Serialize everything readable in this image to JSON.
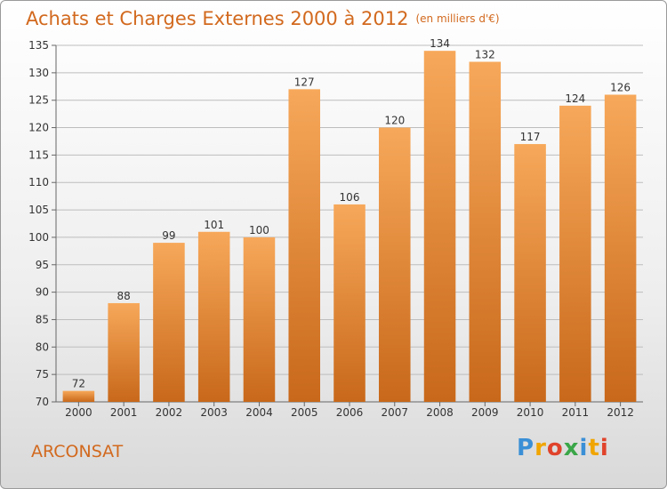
{
  "header": {
    "title": "Achats et Charges Externes 2000 à 2012",
    "subtitle": "(en milliers d'€)"
  },
  "footer": {
    "commune": "ARCONSAT",
    "logo_text": "Proxiti",
    "logo_letters": [
      {
        "char": "P",
        "color": "#3a8fd6"
      },
      {
        "char": "r",
        "color": "#f0a500"
      },
      {
        "char": "o",
        "color": "#e0432b"
      },
      {
        "char": "x",
        "color": "#3aa648"
      },
      {
        "char": "i",
        "color": "#3a8fd6"
      },
      {
        "char": "t",
        "color": "#f0a500"
      },
      {
        "char": "i",
        "color": "#e0432b"
      }
    ]
  },
  "colors": {
    "title": "#d2691e",
    "bar_top": "#f7a85a",
    "bar_bottom": "#c8681a",
    "grid": "#bdbdbd"
  },
  "chart_data": {
    "type": "bar",
    "title": "Achats et Charges Externes 2000 à 2012",
    "subtitle": "(en milliers d'€)",
    "categories": [
      "2000",
      "2001",
      "2002",
      "2003",
      "2004",
      "2005",
      "2006",
      "2007",
      "2008",
      "2009",
      "2010",
      "2011",
      "2012"
    ],
    "values": [
      72,
      88,
      99,
      101,
      100,
      127,
      106,
      120,
      134,
      132,
      117,
      124,
      126
    ],
    "ylim": [
      70,
      135
    ],
    "yticks": [
      70,
      75,
      80,
      85,
      90,
      95,
      100,
      105,
      110,
      115,
      120,
      125,
      130,
      135
    ],
    "grid": true,
    "legend": false
  }
}
